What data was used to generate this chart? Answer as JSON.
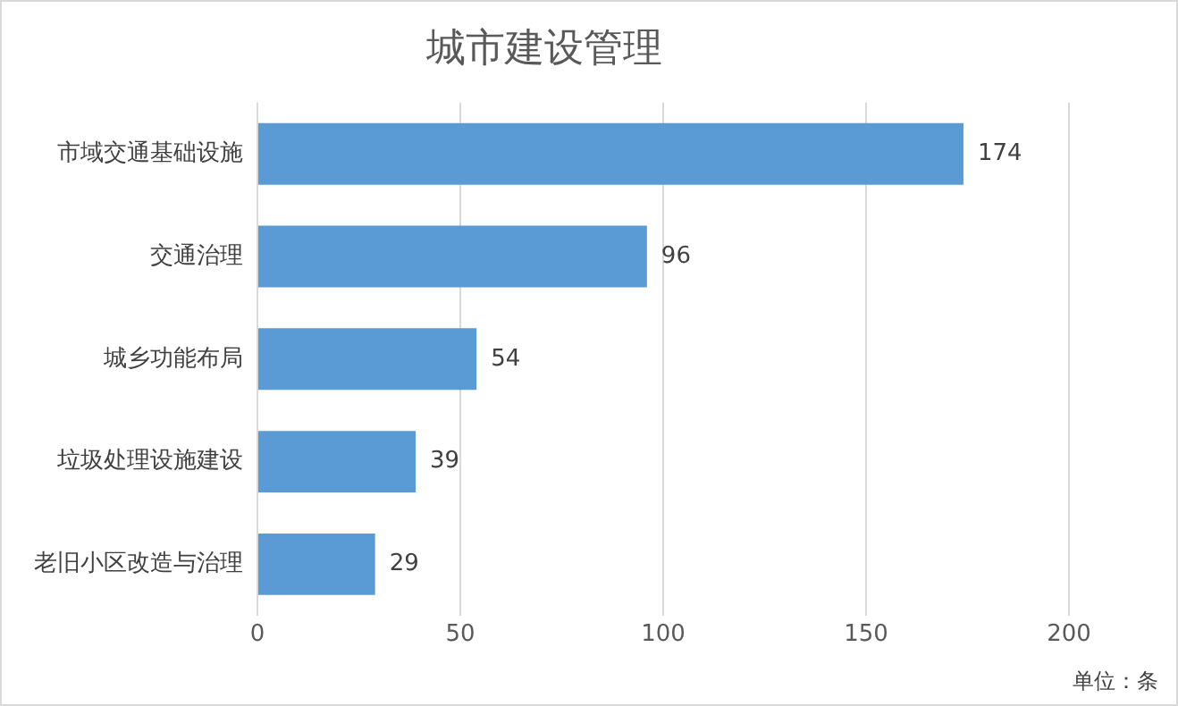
{
  "chart_data": {
    "type": "bar",
    "orientation": "horizontal",
    "title": "城市建设管理",
    "categories": [
      "市域交通基础设施",
      "交通治理",
      "城乡功能布局",
      "垃圾处理设施建设",
      "老旧小区改造与治理"
    ],
    "values": [
      174,
      96,
      54,
      39,
      29
    ],
    "color": "#5b9bd5",
    "xlim": [
      0,
      200
    ],
    "xticks": [
      0,
      50,
      100,
      150,
      200
    ],
    "grid": "x",
    "data_labels": true,
    "legend": false,
    "annotations": [
      "单位：条"
    ]
  }
}
